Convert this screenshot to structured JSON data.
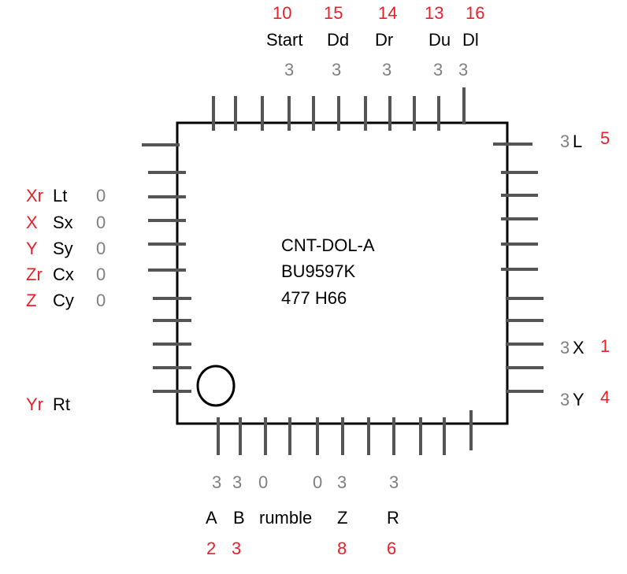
{
  "chip": {
    "lines": [
      "CNT-DOL-A",
      "BU9597K",
      "477 H66"
    ]
  },
  "top": [
    {
      "number": "10",
      "name": "Start",
      "value": "3"
    },
    {
      "number": "15",
      "name": "Dd",
      "value": "3"
    },
    {
      "number": "14",
      "name": "Dr",
      "value": "3"
    },
    {
      "number": "13",
      "name": "Du",
      "value": "3"
    },
    {
      "number": "16",
      "name": "Dl",
      "value": "3"
    }
  ],
  "left": [
    {
      "code": "Xr",
      "name": "Lt",
      "value": "0"
    },
    {
      "code": "X",
      "name": "Sx",
      "value": "0"
    },
    {
      "code": "Y",
      "name": "Sy",
      "value": "0"
    },
    {
      "code": "Zr",
      "name": "Cx",
      "value": "0"
    },
    {
      "code": "Z",
      "name": "Cy",
      "value": "0"
    },
    {
      "code": "Yr",
      "name": "Rt",
      "value": ""
    }
  ],
  "right": [
    {
      "value": "3",
      "name": "L",
      "number": "5"
    },
    {
      "value": "3",
      "name": "X",
      "number": "1"
    },
    {
      "value": "3",
      "name": "Y",
      "number": "4"
    }
  ],
  "bottom": {
    "values": [
      "3",
      "3",
      "0",
      "0",
      "3",
      "3"
    ],
    "names": [
      "A",
      "B",
      "rumble",
      "Z",
      "R"
    ],
    "numbers": [
      "2",
      "3",
      "8",
      "6"
    ]
  },
  "colors": {
    "code": "#e8202a",
    "name": "#000000",
    "value": "#808080",
    "pin": "#555555"
  }
}
